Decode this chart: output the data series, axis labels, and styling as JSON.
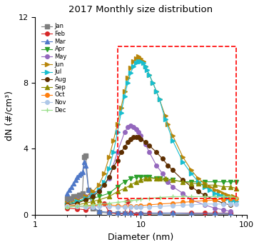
{
  "title": "2017 Monthly size distribution",
  "xlabel": "Diameter (nm)",
  "ylabel": "dN (#/cm³)",
  "xlim": [
    1,
    100
  ],
  "ylim": [
    0,
    12
  ],
  "yticks": [
    0,
    4,
    8,
    12
  ],
  "rect_x0": 6.0,
  "rect_x1": 80.0,
  "rect_y0": 1.0,
  "rect_y1": 10.2,
  "month_styles": {
    "Jan": {
      "color": "#7f7f7f",
      "marker": "s",
      "ms": 4
    },
    "Feb": {
      "color": "#d62728",
      "marker": "o",
      "ms": 4
    },
    "Mar": {
      "color": "#4f78c8",
      "marker": "^",
      "ms": 5
    },
    "Apr": {
      "color": "#2ca02c",
      "marker": "v",
      "ms": 5
    },
    "May": {
      "color": "#9467bd",
      "marker": "o",
      "ms": 4
    },
    "Jun": {
      "color": "#b8860b",
      "marker": ">",
      "ms": 5
    },
    "Jul": {
      "color": "#17becf",
      "marker": ">",
      "ms": 5
    },
    "Aug": {
      "color": "#5c2e00",
      "marker": "o",
      "ms": 4
    },
    "Sep": {
      "color": "#8c8c00",
      "marker": "^",
      "ms": 4
    },
    "Oct": {
      "color": "#ff7f0e",
      "marker": "o",
      "ms": 4
    },
    "Nov": {
      "color": "#aec7e8",
      "marker": "o",
      "ms": 4
    },
    "Dec": {
      "color": "#98df8a",
      "marker": "+",
      "ms": 5
    }
  },
  "series": {
    "Jan": {
      "x": [
        2.0,
        2.1,
        2.2,
        2.3,
        2.4,
        2.5,
        2.6,
        2.7,
        2.8,
        2.9,
        3.0,
        3.2,
        3.5,
        4.0,
        5.0,
        6.0,
        7.0,
        8.0,
        10.0,
        15.0,
        20.0,
        30.0,
        50.0,
        70.0
      ],
      "y": [
        1.0,
        1.0,
        1.0,
        1.1,
        1.1,
        1.1,
        1.2,
        1.2,
        1.3,
        3.5,
        3.6,
        1.5,
        0.4,
        0.15,
        0.1,
        0.08,
        0.06,
        0.05,
        0.04,
        0.03,
        0.02,
        0.02,
        0.02,
        0.02
      ]
    },
    "Feb": {
      "x": [
        2.0,
        2.5,
        3.0,
        3.5,
        4.0,
        4.5,
        5.0,
        6.0,
        7.0,
        7.5,
        8.0,
        9.0,
        10.0,
        12.0,
        15.0,
        20.0,
        30.0,
        40.0,
        50.0,
        70.0
      ],
      "y": [
        0.4,
        0.35,
        0.3,
        0.5,
        0.6,
        0.7,
        0.15,
        0.05,
        0.08,
        0.8,
        0.1,
        0.05,
        0.08,
        0.1,
        0.1,
        0.1,
        0.1,
        0.1,
        0.1,
        0.1
      ]
    },
    "Mar": {
      "x": [
        2.0,
        2.1,
        2.2,
        2.3,
        2.4,
        2.5,
        2.6,
        2.7,
        2.8,
        2.9,
        3.0,
        3.2,
        3.5,
        4.0,
        5.0,
        6.0,
        7.0,
        8.0,
        10.0,
        15.0,
        20.0,
        30.0,
        50.0,
        70.0
      ],
      "y": [
        1.3,
        1.5,
        1.7,
        1.9,
        2.1,
        2.3,
        2.4,
        2.5,
        2.6,
        3.2,
        3.0,
        1.5,
        0.5,
        0.2,
        0.15,
        0.12,
        0.1,
        0.1,
        0.1,
        0.1,
        0.1,
        0.08,
        0.08,
        0.08
      ]
    },
    "Apr": {
      "x": [
        2.0,
        2.5,
        3.0,
        3.5,
        4.0,
        5.0,
        6.0,
        7.0,
        8.0,
        9.0,
        10.0,
        11.0,
        12.0,
        14.0,
        15.0,
        17.0,
        20.0,
        25.0,
        30.0,
        40.0,
        50.0,
        60.0,
        70.0,
        80.0
      ],
      "y": [
        0.7,
        0.8,
        0.9,
        1.0,
        1.1,
        1.3,
        1.7,
        2.0,
        2.2,
        2.3,
        2.3,
        2.3,
        2.3,
        2.2,
        2.2,
        2.1,
        2.1,
        2.0,
        2.0,
        2.0,
        2.0,
        2.0,
        2.0,
        2.0
      ]
    },
    "May": {
      "x": [
        2.0,
        2.5,
        3.0,
        3.5,
        4.0,
        5.0,
        6.0,
        7.0,
        7.5,
        8.0,
        8.5,
        9.0,
        9.5,
        10.0,
        11.0,
        12.0,
        14.0,
        16.0,
        18.0,
        20.0,
        25.0,
        30.0,
        40.0,
        50.0,
        60.0,
        70.0
      ],
      "y": [
        0.7,
        0.9,
        1.1,
        1.3,
        1.5,
        2.2,
        3.8,
        5.0,
        5.3,
        5.4,
        5.3,
        5.2,
        5.0,
        4.8,
        4.3,
        3.8,
        3.0,
        2.5,
        2.0,
        1.7,
        1.3,
        0.9,
        0.6,
        0.4,
        0.3,
        0.2
      ]
    },
    "Jun": {
      "x": [
        2.0,
        2.5,
        3.0,
        3.5,
        4.0,
        4.5,
        5.0,
        5.5,
        6.0,
        6.5,
        7.0,
        7.5,
        8.0,
        8.5,
        9.0,
        9.5,
        10.0,
        10.5,
        11.0,
        12.0,
        13.0,
        14.0,
        15.0,
        17.0,
        18.0,
        20.0,
        25.0,
        30.0,
        35.0,
        40.0,
        45.0,
        50.0,
        55.0,
        60.0,
        65.0,
        70.0,
        75.0,
        80.0
      ],
      "y": [
        0.7,
        0.9,
        1.1,
        1.4,
        1.8,
        2.5,
        3.5,
        4.5,
        5.5,
        6.5,
        7.5,
        8.3,
        8.9,
        9.3,
        9.5,
        9.6,
        9.5,
        9.3,
        9.0,
        8.5,
        8.0,
        7.5,
        7.0,
        6.0,
        5.5,
        4.8,
        3.5,
        2.7,
        2.2,
        1.9,
        1.7,
        1.5,
        1.4,
        1.3,
        1.2,
        1.1,
        1.1,
        1.0
      ]
    },
    "Jul": {
      "x": [
        2.0,
        2.5,
        3.0,
        3.5,
        4.0,
        4.5,
        5.0,
        5.5,
        6.0,
        6.5,
        7.0,
        7.5,
        8.0,
        8.5,
        9.0,
        9.5,
        10.0,
        10.5,
        11.0,
        11.5,
        12.0,
        13.0,
        14.0,
        15.0,
        17.0,
        20.0,
        25.0,
        30.0,
        35.0,
        40.0,
        45.0,
        50.0,
        55.0,
        60.0,
        65.0,
        70.0,
        75.0,
        80.0
      ],
      "y": [
        0.6,
        0.8,
        1.0,
        1.2,
        1.5,
        2.0,
        2.8,
        3.8,
        5.0,
        6.2,
        7.2,
        8.0,
        8.6,
        9.0,
        9.2,
        9.3,
        9.3,
        9.2,
        9.0,
        8.8,
        8.5,
        8.0,
        7.5,
        7.0,
        5.8,
        4.5,
        3.2,
        2.5,
        2.0,
        1.7,
        1.5,
        1.3,
        1.2,
        1.1,
        1.0,
        0.9,
        0.9,
        0.8
      ]
    },
    "Aug": {
      "x": [
        2.0,
        2.5,
        3.0,
        3.5,
        4.0,
        4.5,
        5.0,
        5.5,
        6.0,
        6.5,
        7.0,
        7.5,
        8.0,
        8.5,
        9.0,
        9.5,
        10.0,
        11.0,
        12.0,
        14.0,
        16.0,
        18.0,
        20.0,
        25.0,
        30.0,
        35.0,
        40.0,
        50.0,
        60.0,
        70.0
      ],
      "y": [
        0.6,
        0.7,
        0.9,
        1.1,
        1.4,
        1.8,
        2.3,
        2.9,
        3.3,
        3.8,
        4.1,
        4.4,
        4.6,
        4.7,
        4.7,
        4.7,
        4.6,
        4.4,
        4.2,
        3.8,
        3.4,
        3.0,
        2.7,
        2.1,
        1.7,
        1.4,
        1.2,
        0.9,
        0.7,
        0.6
      ]
    },
    "Sep": {
      "x": [
        2.0,
        2.5,
        3.0,
        3.5,
        4.0,
        5.0,
        6.0,
        7.0,
        8.0,
        9.0,
        10.0,
        11.0,
        12.0,
        14.0,
        15.0,
        17.0,
        20.0,
        25.0,
        30.0,
        35.0,
        40.0,
        50.0,
        60.0,
        70.0,
        80.0
      ],
      "y": [
        0.5,
        0.6,
        0.7,
        0.8,
        0.9,
        1.1,
        1.4,
        1.6,
        1.8,
        2.0,
        2.1,
        2.2,
        2.2,
        2.2,
        2.2,
        2.2,
        2.1,
        2.0,
        1.9,
        1.9,
        1.8,
        1.8,
        1.7,
        1.7,
        1.6
      ]
    },
    "Oct": {
      "x": [
        2.0,
        2.5,
        3.0,
        3.5,
        4.0,
        5.0,
        6.0,
        7.0,
        8.0,
        9.0,
        10.0,
        12.0,
        15.0,
        20.0,
        25.0,
        30.0,
        40.0,
        50.0,
        60.0,
        70.0,
        80.0
      ],
      "y": [
        0.55,
        0.55,
        0.5,
        0.55,
        0.6,
        0.6,
        0.55,
        0.5,
        0.5,
        0.5,
        0.55,
        0.6,
        0.65,
        0.7,
        0.75,
        0.8,
        0.85,
        0.9,
        0.95,
        1.0,
        1.0
      ]
    },
    "Nov": {
      "x": [
        2.0,
        2.5,
        3.0,
        3.5,
        4.0,
        5.0,
        6.0,
        7.0,
        8.0,
        9.0,
        10.0,
        12.0,
        15.0,
        20.0,
        25.0,
        30.0,
        40.0,
        50.0,
        60.0,
        70.0,
        80.0
      ],
      "y": [
        0.5,
        0.5,
        0.45,
        0.48,
        0.5,
        0.5,
        0.48,
        0.45,
        0.45,
        0.45,
        0.45,
        0.48,
        0.5,
        0.55,
        0.58,
        0.6,
        0.65,
        0.65,
        0.65,
        0.65,
        0.65
      ]
    },
    "Dec": {
      "x": [
        2.0,
        2.5,
        3.0,
        3.5,
        4.0,
        5.0,
        6.0,
        7.0,
        8.0,
        9.0,
        10.0,
        12.0,
        15.0,
        20.0,
        25.0,
        30.0,
        40.0,
        50.0,
        60.0,
        70.0,
        80.0
      ],
      "y": [
        0.45,
        0.5,
        0.55,
        0.6,
        0.65,
        0.7,
        0.75,
        0.8,
        0.85,
        0.9,
        0.95,
        1.0,
        1.05,
        1.1,
        1.1,
        1.1,
        1.1,
        1.1,
        1.1,
        1.1,
        1.05
      ]
    }
  }
}
